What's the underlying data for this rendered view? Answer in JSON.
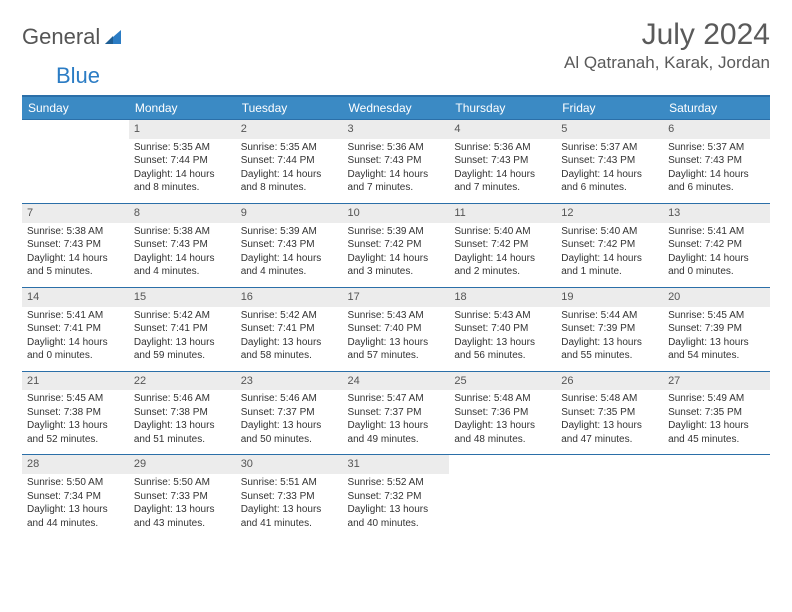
{
  "logo": {
    "text1": "General",
    "text2": "Blue"
  },
  "title": "July 2024",
  "location": "Al Qatranah, Karak, Jordan",
  "colors": {
    "header_bg": "#3b8ac4",
    "header_text": "#ffffff",
    "rule": "#2b6fa8",
    "daynum_bg": "#ececec",
    "body_text": "#333333",
    "title_text": "#5a5a5a"
  },
  "day_headers": [
    "Sunday",
    "Monday",
    "Tuesday",
    "Wednesday",
    "Thursday",
    "Friday",
    "Saturday"
  ],
  "weeks": [
    [
      {
        "n": "",
        "sunrise": "",
        "sunset": "",
        "daylight": ""
      },
      {
        "n": "1",
        "sunrise": "Sunrise: 5:35 AM",
        "sunset": "Sunset: 7:44 PM",
        "daylight": "Daylight: 14 hours and 8 minutes."
      },
      {
        "n": "2",
        "sunrise": "Sunrise: 5:35 AM",
        "sunset": "Sunset: 7:44 PM",
        "daylight": "Daylight: 14 hours and 8 minutes."
      },
      {
        "n": "3",
        "sunrise": "Sunrise: 5:36 AM",
        "sunset": "Sunset: 7:43 PM",
        "daylight": "Daylight: 14 hours and 7 minutes."
      },
      {
        "n": "4",
        "sunrise": "Sunrise: 5:36 AM",
        "sunset": "Sunset: 7:43 PM",
        "daylight": "Daylight: 14 hours and 7 minutes."
      },
      {
        "n": "5",
        "sunrise": "Sunrise: 5:37 AM",
        "sunset": "Sunset: 7:43 PM",
        "daylight": "Daylight: 14 hours and 6 minutes."
      },
      {
        "n": "6",
        "sunrise": "Sunrise: 5:37 AM",
        "sunset": "Sunset: 7:43 PM",
        "daylight": "Daylight: 14 hours and 6 minutes."
      }
    ],
    [
      {
        "n": "7",
        "sunrise": "Sunrise: 5:38 AM",
        "sunset": "Sunset: 7:43 PM",
        "daylight": "Daylight: 14 hours and 5 minutes."
      },
      {
        "n": "8",
        "sunrise": "Sunrise: 5:38 AM",
        "sunset": "Sunset: 7:43 PM",
        "daylight": "Daylight: 14 hours and 4 minutes."
      },
      {
        "n": "9",
        "sunrise": "Sunrise: 5:39 AM",
        "sunset": "Sunset: 7:43 PM",
        "daylight": "Daylight: 14 hours and 4 minutes."
      },
      {
        "n": "10",
        "sunrise": "Sunrise: 5:39 AM",
        "sunset": "Sunset: 7:42 PM",
        "daylight": "Daylight: 14 hours and 3 minutes."
      },
      {
        "n": "11",
        "sunrise": "Sunrise: 5:40 AM",
        "sunset": "Sunset: 7:42 PM",
        "daylight": "Daylight: 14 hours and 2 minutes."
      },
      {
        "n": "12",
        "sunrise": "Sunrise: 5:40 AM",
        "sunset": "Sunset: 7:42 PM",
        "daylight": "Daylight: 14 hours and 1 minute."
      },
      {
        "n": "13",
        "sunrise": "Sunrise: 5:41 AM",
        "sunset": "Sunset: 7:42 PM",
        "daylight": "Daylight: 14 hours and 0 minutes."
      }
    ],
    [
      {
        "n": "14",
        "sunrise": "Sunrise: 5:41 AM",
        "sunset": "Sunset: 7:41 PM",
        "daylight": "Daylight: 14 hours and 0 minutes."
      },
      {
        "n": "15",
        "sunrise": "Sunrise: 5:42 AM",
        "sunset": "Sunset: 7:41 PM",
        "daylight": "Daylight: 13 hours and 59 minutes."
      },
      {
        "n": "16",
        "sunrise": "Sunrise: 5:42 AM",
        "sunset": "Sunset: 7:41 PM",
        "daylight": "Daylight: 13 hours and 58 minutes."
      },
      {
        "n": "17",
        "sunrise": "Sunrise: 5:43 AM",
        "sunset": "Sunset: 7:40 PM",
        "daylight": "Daylight: 13 hours and 57 minutes."
      },
      {
        "n": "18",
        "sunrise": "Sunrise: 5:43 AM",
        "sunset": "Sunset: 7:40 PM",
        "daylight": "Daylight: 13 hours and 56 minutes."
      },
      {
        "n": "19",
        "sunrise": "Sunrise: 5:44 AM",
        "sunset": "Sunset: 7:39 PM",
        "daylight": "Daylight: 13 hours and 55 minutes."
      },
      {
        "n": "20",
        "sunrise": "Sunrise: 5:45 AM",
        "sunset": "Sunset: 7:39 PM",
        "daylight": "Daylight: 13 hours and 54 minutes."
      }
    ],
    [
      {
        "n": "21",
        "sunrise": "Sunrise: 5:45 AM",
        "sunset": "Sunset: 7:38 PM",
        "daylight": "Daylight: 13 hours and 52 minutes."
      },
      {
        "n": "22",
        "sunrise": "Sunrise: 5:46 AM",
        "sunset": "Sunset: 7:38 PM",
        "daylight": "Daylight: 13 hours and 51 minutes."
      },
      {
        "n": "23",
        "sunrise": "Sunrise: 5:46 AM",
        "sunset": "Sunset: 7:37 PM",
        "daylight": "Daylight: 13 hours and 50 minutes."
      },
      {
        "n": "24",
        "sunrise": "Sunrise: 5:47 AM",
        "sunset": "Sunset: 7:37 PM",
        "daylight": "Daylight: 13 hours and 49 minutes."
      },
      {
        "n": "25",
        "sunrise": "Sunrise: 5:48 AM",
        "sunset": "Sunset: 7:36 PM",
        "daylight": "Daylight: 13 hours and 48 minutes."
      },
      {
        "n": "26",
        "sunrise": "Sunrise: 5:48 AM",
        "sunset": "Sunset: 7:35 PM",
        "daylight": "Daylight: 13 hours and 47 minutes."
      },
      {
        "n": "27",
        "sunrise": "Sunrise: 5:49 AM",
        "sunset": "Sunset: 7:35 PM",
        "daylight": "Daylight: 13 hours and 45 minutes."
      }
    ],
    [
      {
        "n": "28",
        "sunrise": "Sunrise: 5:50 AM",
        "sunset": "Sunset: 7:34 PM",
        "daylight": "Daylight: 13 hours and 44 minutes."
      },
      {
        "n": "29",
        "sunrise": "Sunrise: 5:50 AM",
        "sunset": "Sunset: 7:33 PM",
        "daylight": "Daylight: 13 hours and 43 minutes."
      },
      {
        "n": "30",
        "sunrise": "Sunrise: 5:51 AM",
        "sunset": "Sunset: 7:33 PM",
        "daylight": "Daylight: 13 hours and 41 minutes."
      },
      {
        "n": "31",
        "sunrise": "Sunrise: 5:52 AM",
        "sunset": "Sunset: 7:32 PM",
        "daylight": "Daylight: 13 hours and 40 minutes."
      },
      {
        "n": "",
        "sunrise": "",
        "sunset": "",
        "daylight": ""
      },
      {
        "n": "",
        "sunrise": "",
        "sunset": "",
        "daylight": ""
      },
      {
        "n": "",
        "sunrise": "",
        "sunset": "",
        "daylight": ""
      }
    ]
  ]
}
